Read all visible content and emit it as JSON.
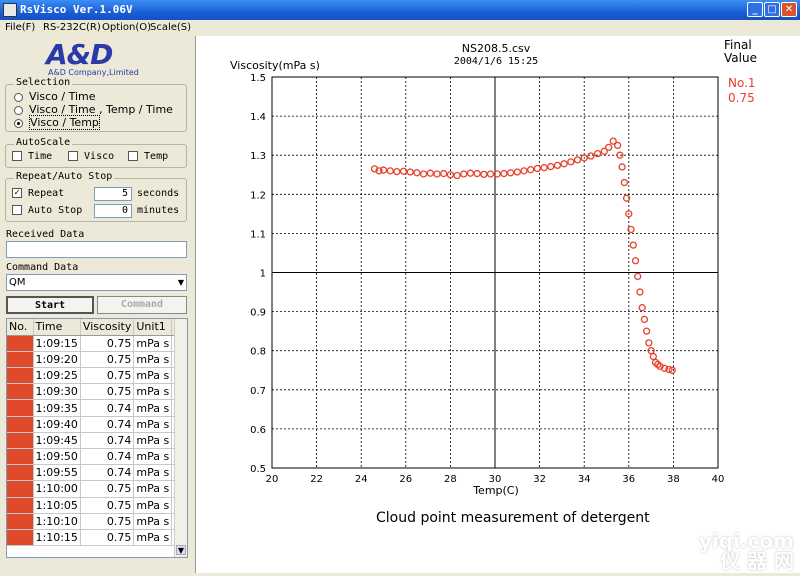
{
  "window": {
    "title": "RsVisco Ver.1.06V"
  },
  "menu": [
    "File(F)",
    "RS-232C(R)",
    "Option(O)",
    "Scale(S)"
  ],
  "logo": {
    "mark": "A&D",
    "company": "A&D Company,Limited"
  },
  "selection": {
    "legend": "Selection",
    "options": [
      "Visco / Time",
      "Visco / Time , Temp / Time",
      "Visco / Temp"
    ],
    "selected_index": 2
  },
  "autoscale": {
    "legend": "AutoScale",
    "time": "Time",
    "visco": "Visco",
    "temp": "Temp"
  },
  "repeat": {
    "legend": "Repeat/Auto Stop",
    "repeat_label": "Repeat",
    "repeat_checked": true,
    "repeat_value": "5",
    "repeat_unit": "seconds",
    "autostop_label": "Auto Stop",
    "autostop_checked": false,
    "autostop_value": "0",
    "autostop_unit": "minutes"
  },
  "received": {
    "label": "Received Data",
    "value": ""
  },
  "command": {
    "label": "Command Data",
    "value": "QM"
  },
  "buttons": {
    "start": "Start",
    "command": "Command"
  },
  "table": {
    "headers": [
      "No.",
      "Time",
      "Viscosity",
      "Unit1",
      "T"
    ],
    "rows": [
      {
        "time": "1:09:15",
        "visc": "0.75",
        "unit": "mPa s"
      },
      {
        "time": "1:09:20",
        "visc": "0.75",
        "unit": "mPa s"
      },
      {
        "time": "1:09:25",
        "visc": "0.75",
        "unit": "mPa s"
      },
      {
        "time": "1:09:30",
        "visc": "0.75",
        "unit": "mPa s"
      },
      {
        "time": "1:09:35",
        "visc": "0.74",
        "unit": "mPa s"
      },
      {
        "time": "1:09:40",
        "visc": "0.74",
        "unit": "mPa s"
      },
      {
        "time": "1:09:45",
        "visc": "0.74",
        "unit": "mPa s"
      },
      {
        "time": "1:09:50",
        "visc": "0.74",
        "unit": "mPa s"
      },
      {
        "time": "1:09:55",
        "visc": "0.74",
        "unit": "mPa s"
      },
      {
        "time": "1:10:00",
        "visc": "0.75",
        "unit": "mPa s"
      },
      {
        "time": "1:10:05",
        "visc": "0.75",
        "unit": "mPa s"
      },
      {
        "time": "1:10:10",
        "visc": "0.75",
        "unit": "mPa s"
      },
      {
        "time": "1:10:15",
        "visc": "0.75",
        "unit": "mPa s"
      }
    ]
  },
  "final": {
    "label_line1": "Final",
    "label_line2": "Value",
    "no": "No.1",
    "value": "0.75"
  },
  "caption": "Cloud point measurement of detergent",
  "watermark": {
    "line1": "yiqi.com",
    "line2": "仪 器 网"
  },
  "colors": {
    "series": "#e8402a",
    "titlebar": "#1a5fd6"
  },
  "chart_data": {
    "type": "scatter",
    "title": "NS208.5.csv",
    "subtitle": "2004/1/6 15:25",
    "xlabel": "Temp(C)",
    "ylabel": "Viscosity(mPa s)",
    "xlim": [
      20,
      40
    ],
    "ylim": [
      0.5,
      1.5
    ],
    "xticks": [
      "20",
      "22",
      "24",
      "26",
      "28",
      "30",
      "32",
      "34",
      "36",
      "38",
      "40"
    ],
    "yticks": [
      "1.5",
      "1.4",
      "1.3",
      "1.2",
      "1.1",
      "1",
      "0.9",
      "0.8",
      "0.7",
      "0.6",
      "0.5"
    ],
    "grid": true,
    "series": [
      {
        "name": "No.1",
        "points": [
          [
            24.6,
            1.265
          ],
          [
            24.8,
            1.26
          ],
          [
            25.0,
            1.262
          ],
          [
            25.3,
            1.26
          ],
          [
            25.6,
            1.258
          ],
          [
            25.9,
            1.259
          ],
          [
            26.2,
            1.257
          ],
          [
            26.5,
            1.255
          ],
          [
            26.8,
            1.252
          ],
          [
            27.1,
            1.254
          ],
          [
            27.4,
            1.252
          ],
          [
            27.7,
            1.253
          ],
          [
            28.0,
            1.25
          ],
          [
            28.3,
            1.248
          ],
          [
            28.6,
            1.252
          ],
          [
            28.9,
            1.254
          ],
          [
            29.2,
            1.253
          ],
          [
            29.5,
            1.251
          ],
          [
            29.8,
            1.252
          ],
          [
            30.1,
            1.252
          ],
          [
            30.4,
            1.253
          ],
          [
            30.7,
            1.255
          ],
          [
            31.0,
            1.257
          ],
          [
            31.3,
            1.26
          ],
          [
            31.6,
            1.263
          ],
          [
            31.9,
            1.266
          ],
          [
            32.2,
            1.268
          ],
          [
            32.5,
            1.271
          ],
          [
            32.8,
            1.274
          ],
          [
            33.1,
            1.278
          ],
          [
            33.4,
            1.283
          ],
          [
            33.7,
            1.288
          ],
          [
            34.0,
            1.293
          ],
          [
            34.3,
            1.298
          ],
          [
            34.6,
            1.304
          ],
          [
            34.9,
            1.31
          ],
          [
            35.1,
            1.32
          ],
          [
            35.3,
            1.336
          ],
          [
            35.5,
            1.325
          ],
          [
            35.6,
            1.3
          ],
          [
            35.7,
            1.27
          ],
          [
            35.8,
            1.23
          ],
          [
            35.9,
            1.19
          ],
          [
            36.0,
            1.15
          ],
          [
            36.1,
            1.11
          ],
          [
            36.2,
            1.07
          ],
          [
            36.3,
            1.03
          ],
          [
            36.4,
            0.99
          ],
          [
            36.5,
            0.95
          ],
          [
            36.6,
            0.91
          ],
          [
            36.7,
            0.88
          ],
          [
            36.8,
            0.85
          ],
          [
            36.9,
            0.82
          ],
          [
            37.0,
            0.8
          ],
          [
            37.1,
            0.785
          ],
          [
            37.2,
            0.77
          ],
          [
            37.3,
            0.765
          ],
          [
            37.4,
            0.76
          ],
          [
            37.6,
            0.755
          ],
          [
            37.8,
            0.752
          ],
          [
            37.95,
            0.75
          ]
        ]
      }
    ]
  }
}
